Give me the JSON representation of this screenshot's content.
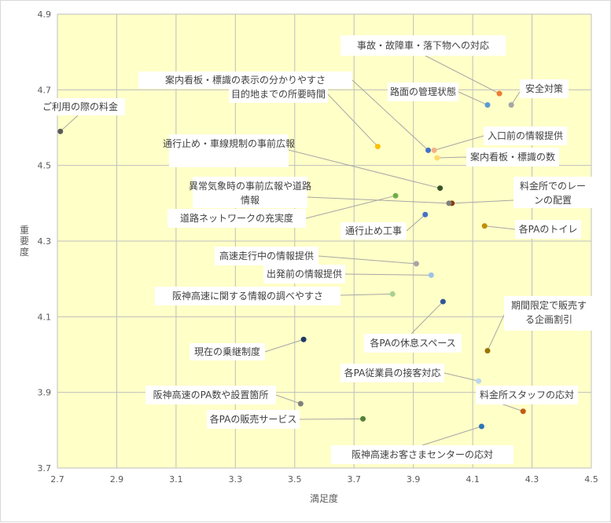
{
  "chart_data": {
    "type": "scatter",
    "xlabel": "満足度",
    "ylabel": "重要度",
    "xlim": [
      2.7,
      4.5
    ],
    "ylim": [
      3.7,
      4.9
    ],
    "x_ticks": [
      "2.7",
      "2.9",
      "3.1",
      "3.3",
      "3.5",
      "3.7",
      "3.9",
      "4.1",
      "4.3",
      "4.5"
    ],
    "y_ticks": [
      "4.9",
      "4.7",
      "4.5",
      "4.3",
      "4.1",
      "3.9",
      "3.7"
    ],
    "grid": true,
    "colors": {
      "plot_bg": "#ffffc8",
      "grid": "#bfbfbf",
      "leader": "#a6a6a6"
    },
    "points": [
      {
        "label": "事故・故障車・落下物への対応",
        "x": 4.19,
        "y": 4.69,
        "color": "#ed7d31"
      },
      {
        "label": "安全対策",
        "x": 4.23,
        "y": 4.66,
        "color": "#a5a5a5"
      },
      {
        "label": "案内看板・標識の表示の分かりやすさ",
        "x": 3.95,
        "y": 4.54,
        "color": "#4472c4"
      },
      {
        "label": "路面の管理状態",
        "x": 4.15,
        "y": 4.66,
        "color": "#5b9bd5"
      },
      {
        "label": "目的地までの所要時間",
        "x": 3.78,
        "y": 4.55,
        "color": "#ffc000"
      },
      {
        "label": "ご利用の際の料金",
        "x": 2.71,
        "y": 4.59,
        "color": "#595959"
      },
      {
        "label": "入口前の情報提供",
        "x": 3.97,
        "y": 4.54,
        "color": "#f4b183"
      },
      {
        "label": "案内看板・標識の数",
        "x": 3.98,
        "y": 4.52,
        "color": "#ffd966"
      },
      {
        "label": "通行止め・車線規制の事前広報",
        "x": 3.99,
        "y": 4.44,
        "color": "#375623"
      },
      {
        "label": "料金所でのレーンの配置",
        "x": 4.03,
        "y": 4.4,
        "color": "#843c0c"
      },
      {
        "label": "異常気象時の事前広報や道路情報",
        "x": 4.02,
        "y": 4.4,
        "color": "#7f7f7f"
      },
      {
        "label": "道路ネットワークの充実度",
        "x": 3.84,
        "y": 4.42,
        "color": "#70ad47"
      },
      {
        "label": "通行止め工事",
        "x": 3.94,
        "y": 4.37,
        "color": "#4472c4"
      },
      {
        "label": "各PAのトイレ",
        "x": 4.14,
        "y": 4.34,
        "color": "#bf9000"
      },
      {
        "label": "高速走行中の情報提供",
        "x": 3.91,
        "y": 4.24,
        "color": "#a5a5a5"
      },
      {
        "label": "出発前の情報提供",
        "x": 3.96,
        "y": 4.21,
        "color": "#9dc3e6"
      },
      {
        "label": "阪神高速に関する情報の調べやすさ",
        "x": 3.83,
        "y": 4.16,
        "color": "#a9d18e"
      },
      {
        "label": "各PAの休息スペース",
        "x": 4.0,
        "y": 4.14,
        "color": "#2f5597"
      },
      {
        "label": "期間限定で販売する企画割引",
        "x": 4.15,
        "y": 4.01,
        "color": "#997300"
      },
      {
        "label": "現在の乗継制度",
        "x": 3.53,
        "y": 4.04,
        "color": "#1f3864"
      },
      {
        "label": "各PA従業員の接客対応",
        "x": 4.12,
        "y": 3.93,
        "color": "#bdd7ee"
      },
      {
        "label": "阪神高速のPA数や設置箇所",
        "x": 3.52,
        "y": 3.87,
        "color": "#7f7f7f"
      },
      {
        "label": "料金所スタッフの応対",
        "x": 4.27,
        "y": 3.85,
        "color": "#c55a11"
      },
      {
        "label": "各PAの販売サービス",
        "x": 3.73,
        "y": 3.83,
        "color": "#548235"
      },
      {
        "label": "阪神高速お客さまセンターの応対",
        "x": 4.13,
        "y": 3.81,
        "color": "#2e75b6"
      }
    ]
  }
}
